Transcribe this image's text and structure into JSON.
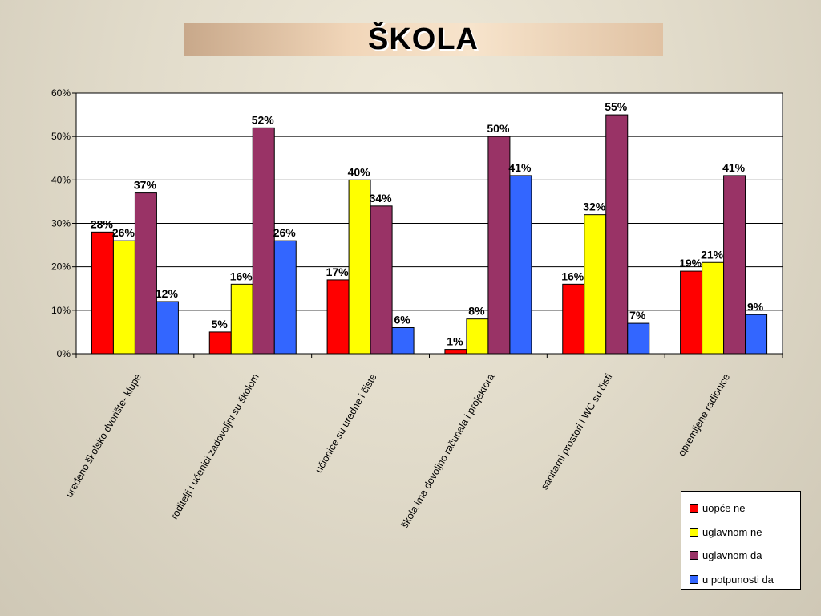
{
  "title": "ŠKOLA",
  "chart_data": {
    "type": "bar",
    "categories": [
      "uređeno školsko dvorište- klupe",
      "roditelji i učenici zadovoljni su školom",
      "učionice su uredne i čiste",
      "škola ima dovoljno računala i projektora",
      "sanitarni prostori i WC su čisti",
      "opremljene radionice"
    ],
    "series": [
      {
        "name": "uopće ne",
        "color": "#ff0000",
        "values": [
          28,
          5,
          17,
          1,
          16,
          19
        ],
        "labels": [
          "28%",
          "5%",
          "17%",
          "1%",
          "16%",
          "19%"
        ]
      },
      {
        "name": "uglavnom ne",
        "color": "#ffff00",
        "values": [
          26,
          16,
          40,
          8,
          32,
          21
        ],
        "labels": [
          "26%",
          "16%",
          "40%",
          "8%",
          "32%",
          "21%"
        ]
      },
      {
        "name": "uglavnom da",
        "color": "#993366",
        "values": [
          37,
          52,
          34,
          50,
          55,
          41
        ],
        "labels": [
          "37%",
          "52%",
          "34%",
          "50%",
          "55%",
          "41%"
        ]
      },
      {
        "name": "u potpunosti da",
        "color": "#3366ff",
        "values": [
          12,
          26,
          6,
          41,
          7,
          9
        ],
        "labels": [
          "12%",
          "26%",
          "6%",
          "41%",
          "7%",
          "9%"
        ]
      }
    ],
    "ylim": [
      0,
      60
    ],
    "yticks": [
      0,
      10,
      20,
      30,
      40,
      50,
      60
    ],
    "ytick_labels": [
      "0%",
      "10%",
      "20%",
      "30%",
      "40%",
      "50%",
      "60%"
    ],
    "grid": true,
    "legend": "bottom-right"
  }
}
